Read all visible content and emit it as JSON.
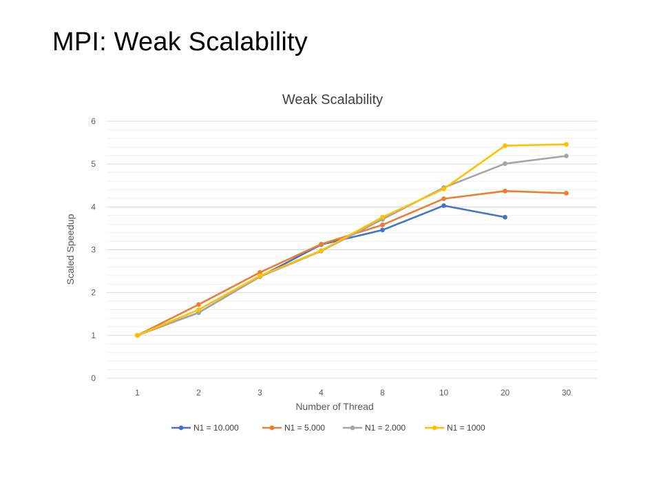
{
  "slide": {
    "title": "MPI: Weak Scalability"
  },
  "chart_data": {
    "type": "line",
    "title": "Weak Scalability",
    "xlabel": "Number of Thread",
    "ylabel": "Scaled Speedup",
    "categories": [
      "1",
      "2",
      "3",
      "4",
      "8",
      "10",
      "20",
      "30"
    ],
    "ylim": [
      0,
      6
    ],
    "yticks": [
      0,
      1,
      2,
      3,
      4,
      5,
      6
    ],
    "grid": true,
    "legend_position": "bottom",
    "series": [
      {
        "name": "N1 = 10.000",
        "color": "#4472C4",
        "values": [
          1.0,
          1.53,
          2.37,
          3.12,
          3.46,
          4.03,
          3.76,
          null
        ]
      },
      {
        "name": "N1 = 5.000",
        "color": "#ED7D31",
        "values": [
          1.0,
          1.72,
          2.47,
          3.13,
          3.58,
          4.19,
          4.37,
          4.32
        ]
      },
      {
        "name": "N1 = 2.000",
        "color": "#A5A5A5",
        "values": [
          1.0,
          1.53,
          2.37,
          2.97,
          3.71,
          4.45,
          5.01,
          5.19
        ]
      },
      {
        "name": "N1 = 1000",
        "color": "#FFC000",
        "values": [
          1.0,
          1.6,
          2.39,
          2.98,
          3.76,
          4.42,
          5.43,
          5.46
        ]
      }
    ]
  }
}
